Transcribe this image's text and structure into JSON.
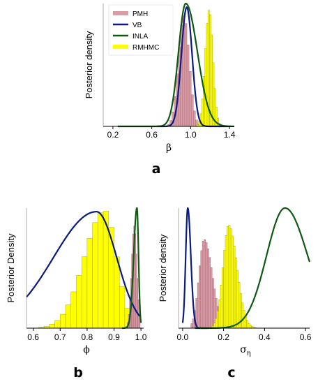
{
  "chart_data": [
    {
      "panel": "a",
      "type": "area",
      "xlabel": "β",
      "ylabel": "Posterior density",
      "xlim": [
        0.1,
        1.45
      ],
      "x_ticks": [
        "0.2",
        "0.6",
        "1.0",
        "1.4"
      ],
      "x_tick_values": [
        0.2,
        0.6,
        1.0,
        1.4
      ],
      "legend": {
        "placement": "top-left",
        "entries": [
          "PMH",
          "VB",
          "INLA",
          "RMHMC"
        ]
      },
      "histograms": [
        {
          "name": "PMH",
          "color": "#d99ba6",
          "edge": "#a0606b",
          "center": 0.93,
          "sd": 0.055,
          "bin_width": 0.022,
          "from": 0.72,
          "to": 1.14,
          "peak": 0.9
        },
        {
          "name": "RMHMC",
          "color": "#ffff00",
          "edge": "#999900",
          "center": 1.19,
          "sd": 0.04,
          "bin_width": 0.016,
          "from": 1.05,
          "to": 1.34,
          "peak": 0.95
        }
      ],
      "curves": [
        {
          "name": "VB",
          "color": "#0a1a80",
          "kind": "gauss",
          "center": 0.96,
          "sd": 0.055,
          "peak": 0.97,
          "from": 0.65,
          "to": 1.4
        },
        {
          "name": "INLA",
          "color": "#0e5a12",
          "kind": "skew",
          "center": 0.95,
          "left_sd": 0.075,
          "right_sd": 0.12,
          "peak": 1.0,
          "from": 0.25,
          "to": 1.45
        }
      ]
    },
    {
      "panel": "b",
      "type": "area",
      "xlabel": "ϕ",
      "ylabel": "Posterior Density",
      "xlim": [
        0.575,
        1.01
      ],
      "x_ticks": [
        "0.6",
        "0.7",
        "0.8",
        "0.9",
        "1.0"
      ],
      "x_tick_values": [
        0.6,
        0.7,
        0.8,
        0.9,
        1.0
      ],
      "histograms": [
        {
          "name": "RMHMC",
          "color": "#ffff00",
          "edge": "#999900",
          "center": 0.865,
          "left_sd": 0.075,
          "right_sd": 0.045,
          "bin_width": 0.02,
          "from": 0.6,
          "to": 0.98,
          "peak": 0.98
        },
        {
          "name": "PMH",
          "color": "#d99ba6",
          "edge": "#a0606b",
          "center": 0.975,
          "sd": 0.01,
          "bin_width": 0.004,
          "from": 0.945,
          "to": 0.995,
          "peak": 0.85
        }
      ],
      "curves": [
        {
          "name": "VB",
          "color": "#0a1a80",
          "kind": "skew",
          "center": 0.835,
          "left_sd": 0.16,
          "right_sd": 0.075,
          "peak": 0.97,
          "from": 0.575,
          "to": 0.995
        },
        {
          "name": "INLA",
          "color": "#0e5a12",
          "kind": "skew",
          "center": 0.985,
          "left_sd": 0.012,
          "right_sd": 0.006,
          "peak": 1.0,
          "from": 0.93,
          "to": 1.0
        }
      ]
    },
    {
      "panel": "c",
      "type": "area",
      "xlabel": "σ",
      "xlabel_sub": "η",
      "ylabel": "Posterior density",
      "xlim": [
        -0.02,
        0.62
      ],
      "x_ticks": [
        "0.0",
        "0.2",
        "0.4",
        "0.6"
      ],
      "x_tick_values": [
        0.0,
        0.2,
        0.4,
        0.6
      ],
      "histograms": [
        {
          "name": "PMH",
          "color": "#d99ba6",
          "edge": "#a0606b",
          "center": 0.105,
          "left_sd": 0.025,
          "right_sd": 0.04,
          "bin_width": 0.008,
          "from": 0.04,
          "to": 0.26,
          "peak": 0.74
        },
        {
          "name": "RMHMC",
          "color": "#ffff00",
          "edge": "#999900",
          "center": 0.225,
          "left_sd": 0.028,
          "right_sd": 0.04,
          "bin_width": 0.008,
          "from": 0.12,
          "to": 0.38,
          "peak": 0.86
        }
      ],
      "curves": [
        {
          "name": "VB",
          "color": "#0a1a80",
          "kind": "skew",
          "center": 0.025,
          "left_sd": 0.01,
          "right_sd": 0.015,
          "peak": 1.0,
          "from": 0.0,
          "to": 0.12
        },
        {
          "name": "INLA",
          "color": "#0e5a12",
          "kind": "skew",
          "center": 0.5,
          "left_sd": 0.09,
          "right_sd": 0.11,
          "peak": 1.0,
          "from": 0.06,
          "to": 0.62
        }
      ]
    }
  ]
}
